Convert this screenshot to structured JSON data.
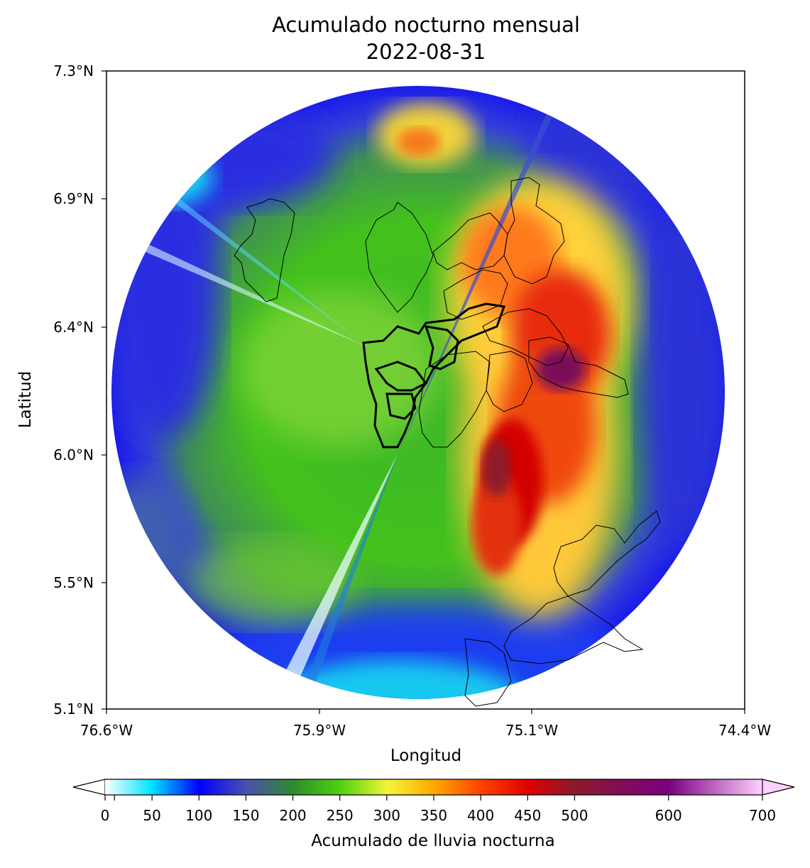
{
  "title": {
    "line1": "Acumulado nocturno mensual",
    "line2": "2022-08-31"
  },
  "axes": {
    "xlabel": "Longitud",
    "ylabel": "Latitud",
    "xticks": [
      "76.6°W",
      "75.9°W",
      "75.1°W",
      "74.4°W"
    ],
    "yticks": [
      "7.3°N",
      "6.9°N",
      "6.4°N",
      "6.0°N",
      "5.5°N",
      "5.1°N"
    ]
  },
  "colorbar": {
    "label": "Acumulado de lluvia nocturna",
    "ticks": [
      "0",
      "50",
      "100",
      "150",
      "200",
      "250",
      "300",
      "350",
      "400",
      "450",
      "500",
      "600",
      "700"
    ],
    "tick_values": [
      0,
      50,
      100,
      150,
      200,
      250,
      300,
      350,
      400,
      450,
      500,
      600,
      700
    ],
    "min": 0,
    "max": 700,
    "extend": "both",
    "colors": [
      "#ffffff",
      "#00e5ff",
      "#0000ff",
      "#4a4fb0",
      "#2e8b2e",
      "#4cd10f",
      "#f4f43a",
      "#ffa800",
      "#ff4500",
      "#e00000",
      "#8b1a2b",
      "#7a0080",
      "#ffd0ff"
    ]
  },
  "map": {
    "radar_type": "circular radar composite",
    "lon_range": [
      76.6,
      74.4
    ],
    "lat_range": [
      5.1,
      7.3
    ],
    "colors": {
      "low": "#1414e6",
      "mid": "#3cc21e",
      "high": "#ffe43a",
      "very_high": "#d60000",
      "extreme": "#7a0a5a"
    }
  }
}
